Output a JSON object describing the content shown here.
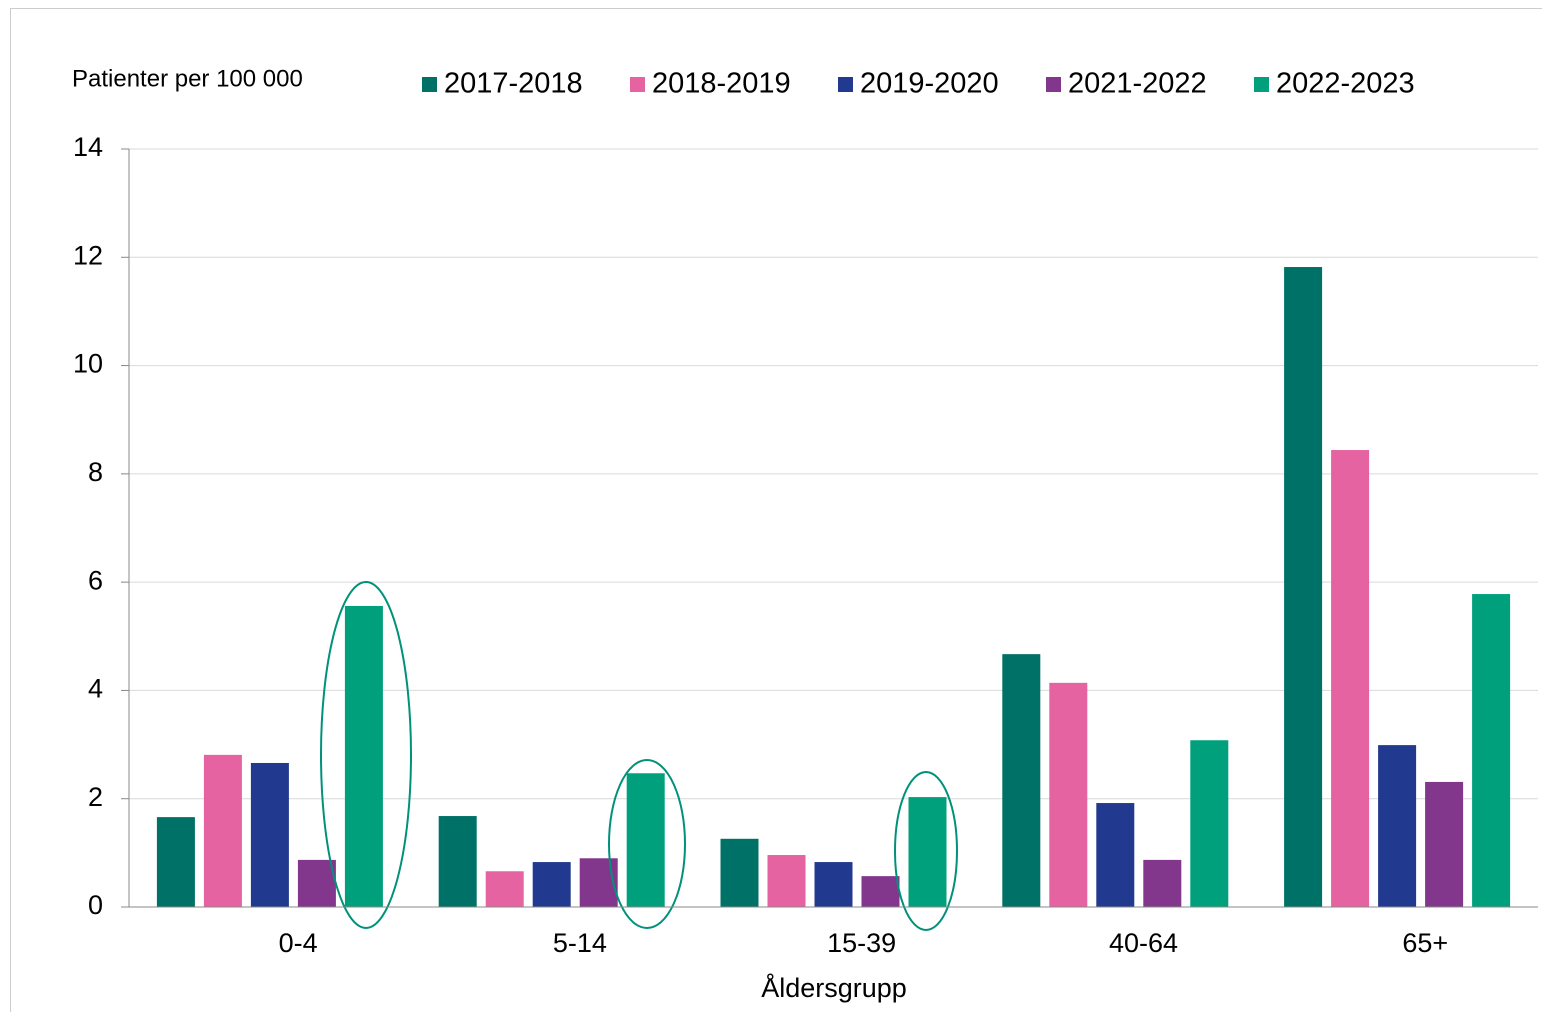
{
  "chart_data": {
    "type": "bar",
    "y_label": "Patienter per 100 000",
    "x_label": "Åldersgrupp",
    "categories": [
      "0-4",
      "5-14",
      "15-39",
      "40-64",
      "65+"
    ],
    "series": [
      {
        "name": "2017-2018",
        "color": "#007167",
        "values": [
          1.66,
          1.68,
          1.26,
          4.67,
          11.82
        ]
      },
      {
        "name": "2018-2019",
        "color": "#e463a0",
        "values": [
          2.81,
          0.66,
          0.96,
          4.14,
          8.44
        ]
      },
      {
        "name": "2019-2020",
        "color": "#213a8f",
        "values": [
          2.66,
          0.83,
          0.83,
          1.92,
          2.99
        ]
      },
      {
        "name": "2021-2022",
        "color": "#82368c",
        "values": [
          0.87,
          0.9,
          0.57,
          0.87,
          2.31
        ]
      },
      {
        "name": "2022-2023",
        "color": "#00a07d",
        "values": [
          5.56,
          2.47,
          2.03,
          3.08,
          5.78
        ]
      }
    ],
    "ylim": [
      0,
      14
    ],
    "yticks": [
      0,
      2,
      4,
      6,
      8,
      10,
      12,
      14
    ],
    "grid": true
  }
}
